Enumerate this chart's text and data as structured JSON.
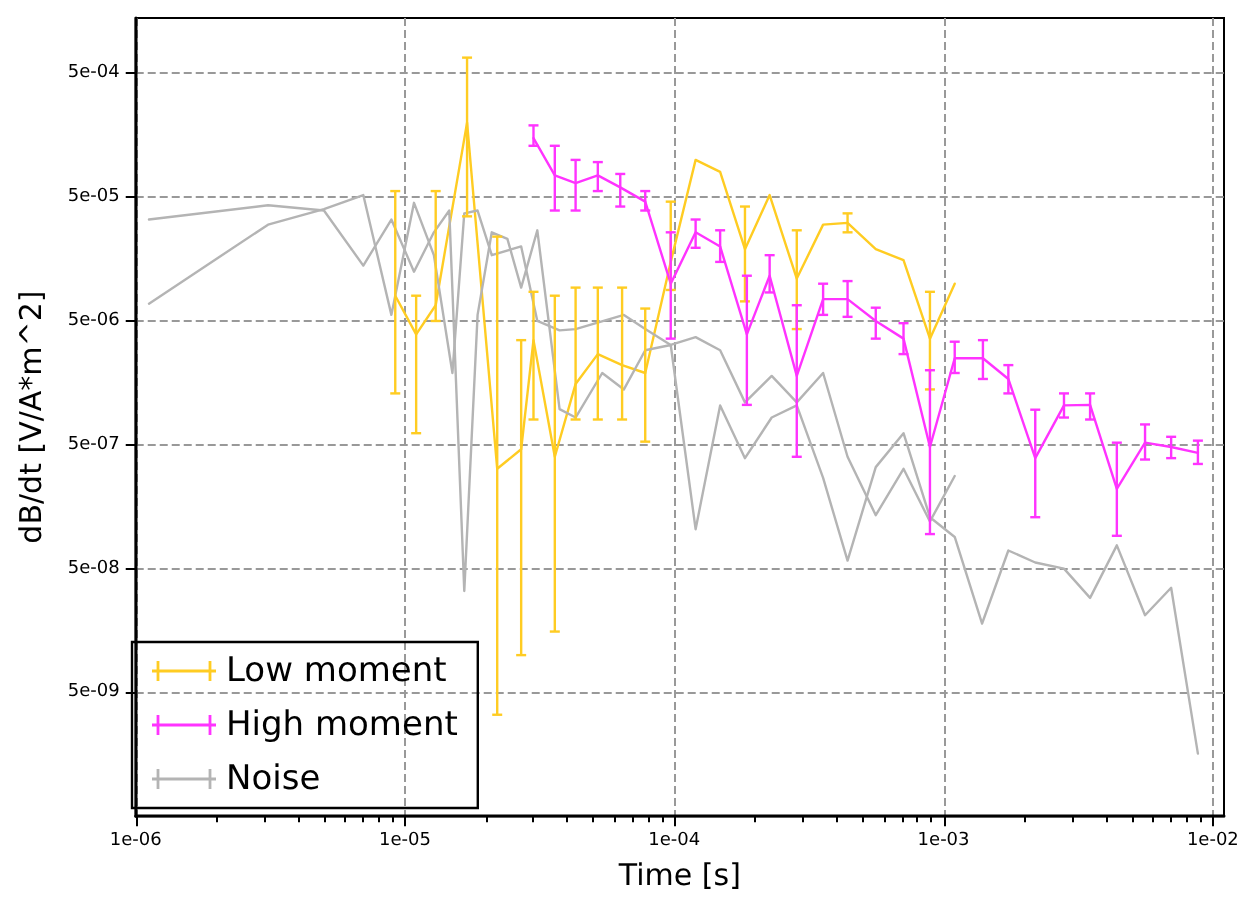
{
  "chart_data": {
    "type": "line",
    "xlabel": "Time [s]",
    "ylabel": "dB/dt [V/A*m^2]",
    "log": "xy",
    "grid": true,
    "legend": "bottom left",
    "marker": "none",
    "line_style": "solid",
    "xlim": [
      1e-06,
      0.011
    ],
    "ylim": [
      5e-10,
      0.0014
    ],
    "xticks": [
      {
        "value": 1e-06,
        "label": "1e-06"
      },
      {
        "value": 1e-05,
        "label": "1e-05"
      },
      {
        "value": 0.0001,
        "label": "1e-04"
      },
      {
        "value": 0.001,
        "label": "1e-03"
      },
      {
        "value": 0.01,
        "label": "1e-02"
      }
    ],
    "yticks": [
      {
        "value": 5e-09,
        "label": "5e-09"
      },
      {
        "value": 5e-08,
        "label": "5e-08"
      },
      {
        "value": 5e-07,
        "label": "5e-07"
      },
      {
        "value": 5e-06,
        "label": "5e-06"
      },
      {
        "value": 5e-05,
        "label": "5e-05"
      },
      {
        "value": 0.0005,
        "label": "5e-04"
      }
    ],
    "series": [
      {
        "name": "Low moment",
        "color": "#ffcc22",
        "x": [
          9.2e-06,
          1.1e-05,
          1.3e-05,
          1.7e-05,
          2.2e-05,
          2.7e-05,
          3e-05,
          3.6e-05,
          4.3e-05,
          5.2e-05,
          6.4e-05,
          7.8e-05,
          9.7e-05,
          0.00012,
          0.000148,
          0.000183,
          0.000226,
          0.000285,
          0.000357,
          0.00044,
          0.00056,
          0.00071,
          0.00089,
          0.0011
        ],
        "values": [
          8e-06,
          3.9e-06,
          6.7e-06,
          0.0002,
          3.2e-07,
          4.6e-07,
          3.5e-06,
          4e-07,
          1.55e-06,
          2.7e-06,
          2.2e-06,
          1.9e-06,
          1.5e-05,
          0.0001,
          8e-05,
          1.9e-05,
          5.2e-05,
          1.1e-05,
          3e-05,
          3.1e-05,
          1.9e-05,
          1.55e-05,
          3.6e-06,
          1e-05
        ],
        "errors": [
          [
            1.3e-06,
            5.6e-05
          ],
          [
            6.2e-07,
            8e-06
          ],
          [
            5e-06,
            5.6e-05
          ],
          [
            3.5e-05,
            0.00067
          ],
          [
            3.3e-09,
            2.4e-05
          ],
          [
            1e-08,
            3.5e-06
          ],
          [
            8e-07,
            8.6e-06
          ],
          [
            1.55e-08,
            8e-06
          ],
          [
            8e-07,
            9.3e-06
          ],
          [
            8e-07,
            9.3e-06
          ],
          [
            8e-07,
            9.3e-06
          ],
          [
            5.3e-07,
            6.3e-06
          ],
          [
            8.9e-06,
            4.6e-05
          ],
          null,
          null,
          [
            7.2e-06,
            4.2e-05
          ],
          null,
          [
            4.3e-06,
            2.7e-05
          ],
          null,
          [
            2.6e-05,
            3.7e-05
          ],
          null,
          null,
          [
            1.4e-06,
            8.6e-06
          ],
          null
        ]
      },
      {
        "name": "High moment",
        "color": "#ff33ff",
        "x": [
          3e-05,
          3.6e-05,
          4.3e-05,
          5.2e-05,
          6.3e-05,
          7.8e-05,
          9.7e-05,
          0.00012,
          0.000148,
          0.000186,
          0.000226,
          0.000285,
          0.000357,
          0.00044,
          0.00056,
          0.00071,
          0.00089,
          0.0011,
          0.0014,
          0.00174,
          0.00219,
          0.0028,
          0.0035,
          0.0044,
          0.0056,
          0.007,
          0.0088
        ],
        "values": [
          0.00015,
          7.5e-05,
          6.5e-05,
          7.5e-05,
          6e-05,
          4.6e-05,
          1e-05,
          2.6e-05,
          2e-05,
          3.9e-06,
          1.16e-05,
          1.8e-06,
          7.5e-06,
          7.5e-06,
          5e-06,
          3.6e-06,
          4.8e-07,
          2.5e-06,
          2.5e-06,
          1.7e-06,
          3.9e-07,
          1.04e-06,
          1.05e-06,
          2.2e-07,
          5.2e-07,
          4.8e-07,
          4.3e-07
        ],
        "errors": [
          [
            0.00013,
            0.00019
          ],
          [
            3.9e-05,
            0.00013
          ],
          [
            3.9e-05,
            0.0001
          ],
          [
            5.6e-05,
            9.6e-05
          ],
          [
            4.2e-05,
            7.7e-05
          ],
          [
            3.9e-05,
            5.6e-05
          ],
          [
            3.6e-06,
            2.6e-05
          ],
          [
            1.95e-05,
            3.3e-05
          ],
          [
            1.5e-05,
            2.7e-05
          ],
          [
            1.05e-06,
            1.16e-05
          ],
          [
            8.5e-06,
            1.7e-05
          ],
          [
            4e-07,
            6.7e-06
          ],
          [
            5.6e-06,
            1e-05
          ],
          [
            5.4e-06,
            1.05e-05
          ],
          [
            3.6e-06,
            6.4e-06
          ],
          [
            2.7e-06,
            4.8e-06
          ],
          [
            9.5e-08,
            2e-06
          ],
          [
            1.9e-06,
            3.4e-06
          ],
          [
            1.7e-06,
            3.5e-06
          ],
          [
            1.3e-06,
            2.2e-06
          ],
          [
            1.3e-07,
            9.6e-07
          ],
          [
            8.3e-07,
            1.3e-06
          ],
          [
            8e-07,
            1.3e-06
          ],
          [
            9.2e-08,
            5.2e-07
          ],
          [
            3.8e-07,
            7.3e-07
          ],
          [
            3.9e-07,
            5.8e-07
          ],
          [
            3.5e-07,
            5.4e-07
          ]
        ]
      },
      {
        "name": "Noise",
        "color": "#b4b4b4",
        "x": [
          1.12e-06,
          3.1e-06,
          5e-06,
          7e-06,
          8.9e-06,
          1.08e-05,
          1.28e-05,
          1.46e-05,
          1.66e-05,
          1.86e-05,
          2.1e-05,
          2.4e-05,
          2.7e-05,
          3.1e-05,
          3.75e-05,
          4.3e-05,
          5.4e-05,
          6.5e-05,
          7.8e-05,
          9.7e-05,
          0.00012,
          0.000148,
          0.000183,
          0.00023,
          0.000285,
          0.000357,
          0.00044,
          0.00056,
          0.00071,
          0.00089,
          0.0011,
          0.00139,
          0.00174,
          0.00219,
          0.0028,
          0.0035,
          0.0044,
          0.0056,
          0.007,
          0.0088
        ],
        "values": [
          3.3e-05,
          4.3e-05,
          3.9e-05,
          1.4e-05,
          3.3e-05,
          1.25e-05,
          2.6e-05,
          3.9e-05,
          3.3e-08,
          5.6e-06,
          2.6e-05,
          2.3e-05,
          9.3e-06,
          2.7e-05,
          9.7e-07,
          8.3e-07,
          1.9e-06,
          1.4e-06,
          2.9e-06,
          3.2e-06,
          1.04e-07,
          1.04e-06,
          3.9e-07,
          8.3e-07,
          1.04e-06,
          2.7e-07,
          5.8e-08,
          3.3e-07,
          6.2e-07,
          1.3e-07,
          9e-08,
          1.8e-08,
          7e-08,
          5.6e-08,
          5e-08,
          2.9e-08,
          7.7e-08,
          2.1e-08,
          3.5e-08,
          1.6e-09
        ]
      },
      {
        "color": "#b4b4b4",
        "x": [
          1.12e-06,
          3.1e-06,
          5e-06,
          7e-06,
          8.9e-06,
          1.08e-05,
          1.28e-05,
          1.5e-05,
          1.66e-05,
          1.86e-05,
          2.1e-05,
          2.7e-05,
          3.1e-05,
          3.75e-05,
          4.3e-05,
          6.5e-05,
          7.8e-05,
          9.7e-05,
          0.00012,
          0.000148,
          0.000183,
          0.00023,
          0.000285,
          0.000357,
          0.00044,
          0.00056,
          0.00071,
          0.00089,
          0.0011
        ],
        "values": [
          6.9e-06,
          3e-05,
          4e-05,
          5.2e-05,
          5.6e-06,
          4.5e-05,
          1.7e-05,
          1.9e-06,
          3.7e-05,
          3.9e-05,
          1.7e-05,
          2e-05,
          5e-06,
          4.2e-06,
          4.3e-06,
          5.6e-06,
          4.3e-06,
          3.2e-06,
          3.7e-06,
          2.9e-06,
          1.1e-06,
          1.8e-06,
          1.1e-06,
          1.9e-06,
          4e-07,
          1.35e-07,
          3.2e-07,
          1.2e-07,
          2.8e-07
        ]
      }
    ]
  }
}
